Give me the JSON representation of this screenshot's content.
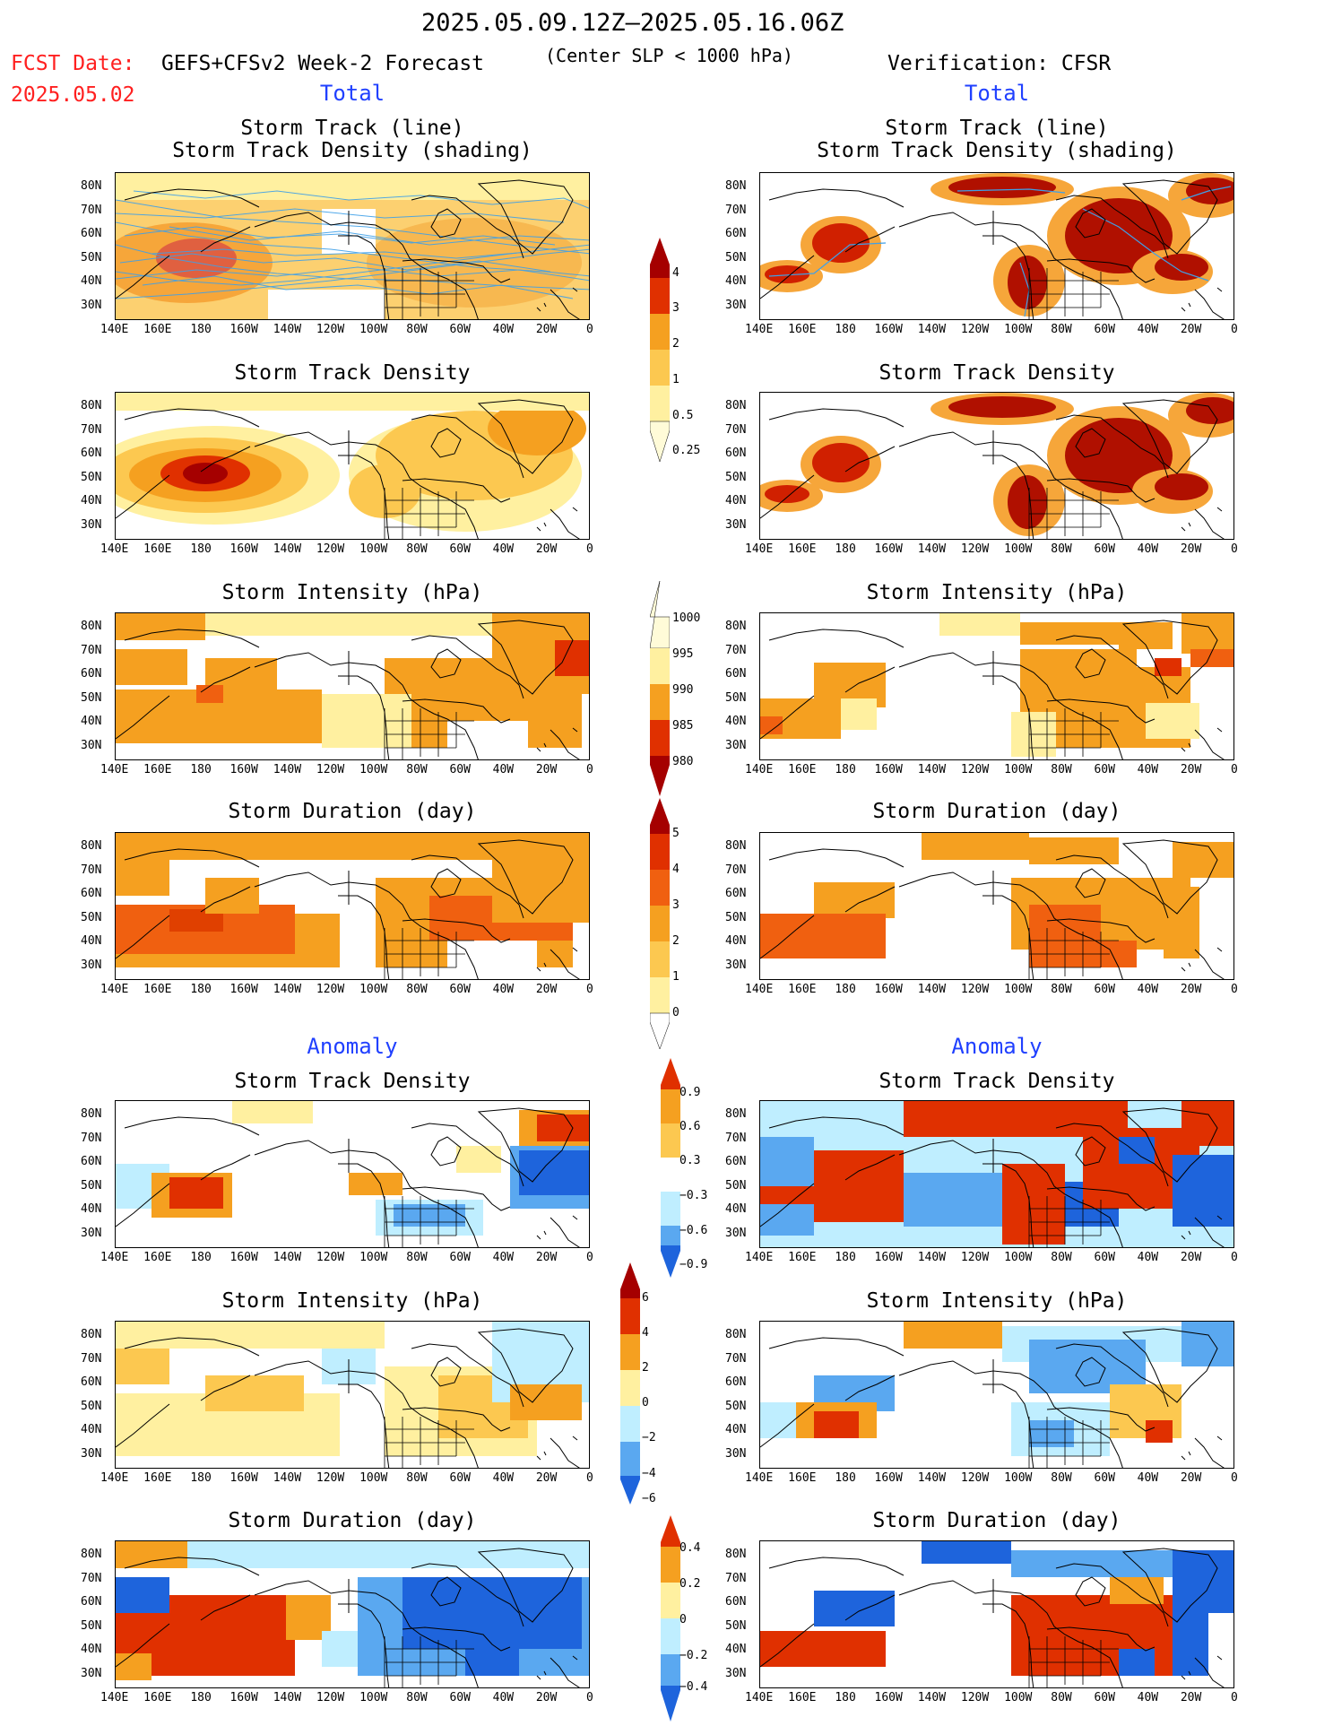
{
  "header": {
    "date_range": "2025.05.09.12Z–2025.05.16.06Z",
    "fcst_label": "FCST Date:",
    "fcst_date": "2025.05.02",
    "product": "GEFS+CFSv2 Week-2 Forecast",
    "criterion": "(Center SLP < 1000 hPa)",
    "verification": "Verification: CFSR",
    "left_total": "Total",
    "right_total": "Total",
    "left_anomaly": "Anomaly",
    "right_anomaly": "Anomaly"
  },
  "panel_titles": {
    "track_line": "Storm Track (line)",
    "track_density_shading": "Storm Track Density (shading)",
    "track_density": "Storm Track Density",
    "intensity": "Storm Intensity (hPa)",
    "duration": "Storm Duration (day)"
  },
  "axes": {
    "lat_labels": [
      "80N",
      "70N",
      "60N",
      "50N",
      "40N",
      "30N"
    ],
    "lon_labels": [
      "140E",
      "160E",
      "180",
      "160W",
      "140W",
      "120W",
      "100W",
      "80W",
      "60W",
      "40W",
      "20W",
      "0"
    ]
  },
  "colorbars": {
    "density_total": [
      "4",
      "3",
      "2",
      "1",
      "0.5",
      "0.25"
    ],
    "intensity_total": [
      "1000",
      "995",
      "990",
      "985",
      "980"
    ],
    "duration_total": [
      "5",
      "4",
      "3",
      "2",
      "1",
      "0"
    ],
    "density_anom": [
      "0.9",
      "0.6",
      "0.3",
      "−0.3",
      "−0.6",
      "−0.9"
    ],
    "intensity_anom": [
      "6",
      "4",
      "2",
      "0",
      "−2",
      "−4",
      "−6"
    ],
    "duration_anom": [
      "0.4",
      "0.2",
      "0",
      "−0.2",
      "−0.4"
    ]
  },
  "colors": {
    "dark_red": "#a50000",
    "red": "#e03000",
    "orange_red": "#f06010",
    "orange": "#f5a020",
    "light_orange": "#fcc850",
    "pale_yellow": "#fff5a8",
    "light_blue": "#bfeeff",
    "mid_blue": "#5aa8f0",
    "blue": "#1e64dc",
    "track_line": "#3fa0e8"
  }
}
